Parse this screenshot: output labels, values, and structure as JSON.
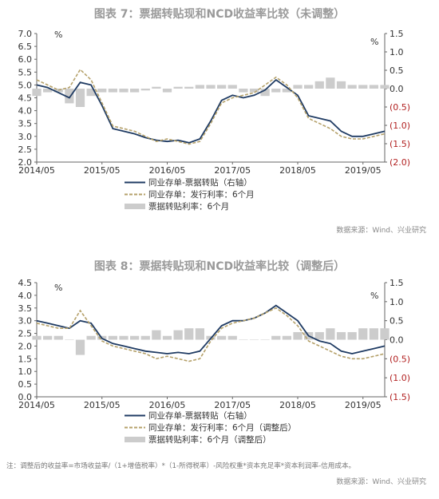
{
  "chart_data": [
    {
      "type": "line",
      "title": "图表 7：票据转贴现和NCD收益率比较（未调整）",
      "unit_left": "%",
      "unit_right": "%",
      "x_ticks": [
        "2014/05",
        "2015/05",
        "2016/05",
        "2017/05",
        "2018/05",
        "2019/05"
      ],
      "x_range": [
        "2014-05",
        "2019-09"
      ],
      "ylim": [
        2.0,
        7.0
      ],
      "y_ticks": [
        "2.0",
        "2.5",
        "3.0",
        "3.5",
        "4.0",
        "4.5",
        "5.0",
        "5.5",
        "6.0",
        "6.5",
        "7.0"
      ],
      "y2lim": [
        -2.0,
        1.5
      ],
      "y2_ticks": [
        "(2.0)",
        "(1.5)",
        "(1.0)",
        "(0.5)",
        "0.0",
        "0.5",
        "1.0",
        "1.5"
      ],
      "legend": [
        "同业存单-票据转贴（右轴）",
        "同业存单：发行利率：6个月",
        "票据转贴利率：6个月"
      ],
      "source": "数据来源：Wind、兴业研究",
      "series": [
        {
          "name": "同业存单：发行利率：6个月",
          "style": "line",
          "color": "#1f3b63",
          "x": [
            "2014-05",
            "2014-07",
            "2014-09",
            "2014-11",
            "2015-01",
            "2015-03",
            "2015-05",
            "2015-07",
            "2015-09",
            "2015-11",
            "2016-01",
            "2016-03",
            "2016-05",
            "2016-07",
            "2016-09",
            "2016-11",
            "2017-01",
            "2017-03",
            "2017-05",
            "2017-07",
            "2017-09",
            "2017-11",
            "2018-01",
            "2018-03",
            "2018-05",
            "2018-07",
            "2018-09",
            "2018-11",
            "2019-01",
            "2019-03",
            "2019-05",
            "2019-07",
            "2019-09"
          ],
          "y": [
            5.0,
            4.9,
            4.7,
            4.5,
            5.1,
            5.0,
            4.2,
            3.3,
            3.2,
            3.1,
            2.95,
            2.85,
            2.8,
            2.85,
            2.75,
            2.9,
            3.6,
            4.4,
            4.6,
            4.5,
            4.6,
            4.8,
            5.2,
            4.9,
            4.6,
            3.8,
            3.7,
            3.6,
            3.2,
            3.0,
            3.0,
            3.1,
            3.2
          ]
        },
        {
          "name": "票据转贴利率：6个月",
          "style": "dashed",
          "color": "#b5a16a",
          "x": [
            "2014-05",
            "2014-07",
            "2014-09",
            "2014-11",
            "2015-01",
            "2015-03",
            "2015-05",
            "2015-07",
            "2015-09",
            "2015-11",
            "2016-01",
            "2016-03",
            "2016-05",
            "2016-07",
            "2016-09",
            "2016-11",
            "2017-01",
            "2017-03",
            "2017-05",
            "2017-07",
            "2017-09",
            "2017-11",
            "2018-01",
            "2018-03",
            "2018-05",
            "2018-07",
            "2018-09",
            "2018-11",
            "2019-01",
            "2019-03",
            "2019-05",
            "2019-07",
            "2019-09"
          ],
          "y": [
            5.2,
            5.0,
            4.8,
            4.9,
            5.6,
            5.2,
            4.3,
            3.4,
            3.3,
            3.2,
            3.0,
            2.8,
            2.9,
            2.8,
            2.7,
            2.8,
            3.5,
            4.3,
            4.5,
            4.6,
            4.7,
            5.0,
            5.3,
            5.0,
            4.5,
            3.7,
            3.5,
            3.3,
            3.0,
            2.9,
            2.9,
            3.0,
            3.1
          ]
        },
        {
          "name": "同业存单-票据转贴（右轴）",
          "style": "bar",
          "axis": "right",
          "color": "#cccccc",
          "x": [
            "2014-05",
            "2014-07",
            "2014-09",
            "2014-11",
            "2015-01",
            "2015-03",
            "2015-05",
            "2015-07",
            "2015-09",
            "2015-11",
            "2016-01",
            "2016-03",
            "2016-05",
            "2016-07",
            "2016-09",
            "2016-11",
            "2017-01",
            "2017-03",
            "2017-05",
            "2017-07",
            "2017-09",
            "2017-11",
            "2018-01",
            "2018-03",
            "2018-05",
            "2018-07",
            "2018-09",
            "2018-11",
            "2019-01",
            "2019-03",
            "2019-05",
            "2019-07",
            "2019-09"
          ],
          "y": [
            -0.2,
            -0.1,
            -0.1,
            -0.4,
            -0.5,
            -0.2,
            -0.1,
            -0.1,
            -0.1,
            -0.1,
            -0.05,
            0.05,
            -0.1,
            0.05,
            0.05,
            0.1,
            0.1,
            0.1,
            0.1,
            -0.1,
            -0.1,
            -0.2,
            -0.1,
            -0.1,
            0.1,
            0.1,
            0.2,
            0.3,
            0.2,
            0.1,
            0.1,
            0.1,
            0.1
          ]
        }
      ]
    },
    {
      "type": "line",
      "title": "图表 8：票据转贴现和NCD收益率比较（调整后）",
      "unit_left": "%",
      "unit_right": "%",
      "x_ticks": [
        "2014/05",
        "2015/05",
        "2016/05",
        "2017/05",
        "2018/05",
        "2019/05"
      ],
      "x_range": [
        "2014-05",
        "2019-09"
      ],
      "ylim": [
        0.0,
        4.5
      ],
      "y_ticks": [
        "0.0",
        "0.5",
        "1.0",
        "1.5",
        "2.0",
        "2.5",
        "3.0",
        "3.5",
        "4.0",
        "4.5"
      ],
      "y2lim": [
        -1.5,
        1.5
      ],
      "y2_ticks": [
        "(1.5)",
        "(1.0)",
        "(0.5)",
        "0.0",
        "0.5",
        "1.0",
        "1.5"
      ],
      "legend": [
        "同业存单-票据转贴（右轴）",
        "同业存单：发行利率：6个月（调整后）",
        "票据转贴利率：6个月（调整后）"
      ],
      "note": "注：调整后的收益率=市场收益率/（1+增值税率）*（1-所得税率）-风险权重*资本充足率*资本利润率-信用成本。",
      "source": "数据来源：Wind、兴业研究",
      "series": [
        {
          "name": "同业存单：发行利率：6个月（调整后）",
          "style": "line",
          "color": "#1f3b63",
          "x": [
            "2014-05",
            "2014-07",
            "2014-09",
            "2014-11",
            "2015-01",
            "2015-03",
            "2015-05",
            "2015-07",
            "2015-09",
            "2015-11",
            "2016-01",
            "2016-03",
            "2016-05",
            "2016-07",
            "2016-09",
            "2016-11",
            "2017-01",
            "2017-03",
            "2017-05",
            "2017-07",
            "2017-09",
            "2017-11",
            "2018-01",
            "2018-03",
            "2018-05",
            "2018-07",
            "2018-09",
            "2018-11",
            "2019-01",
            "2019-03",
            "2019-05",
            "2019-07",
            "2019-09"
          ],
          "y": [
            3.0,
            2.9,
            2.8,
            2.7,
            3.0,
            2.9,
            2.3,
            2.1,
            2.0,
            1.9,
            1.8,
            1.75,
            1.7,
            1.75,
            1.7,
            1.8,
            2.3,
            2.8,
            3.0,
            3.0,
            3.1,
            3.3,
            3.6,
            3.3,
            3.0,
            2.4,
            2.2,
            2.1,
            1.8,
            1.7,
            1.8,
            1.9,
            2.0
          ]
        },
        {
          "name": "票据转贴利率：6个月（调整后）",
          "style": "dashed",
          "color": "#b5a16a",
          "x": [
            "2014-05",
            "2014-07",
            "2014-09",
            "2014-11",
            "2015-01",
            "2015-03",
            "2015-05",
            "2015-07",
            "2015-09",
            "2015-11",
            "2016-01",
            "2016-03",
            "2016-05",
            "2016-07",
            "2016-09",
            "2016-11",
            "2017-01",
            "2017-03",
            "2017-05",
            "2017-07",
            "2017-09",
            "2017-11",
            "2018-01",
            "2018-03",
            "2018-05",
            "2018-07",
            "2018-09",
            "2018-11",
            "2019-01",
            "2019-03",
            "2019-05",
            "2019-07",
            "2019-09"
          ],
          "y": [
            2.9,
            2.8,
            2.7,
            2.7,
            3.4,
            2.8,
            2.2,
            2.0,
            1.9,
            1.8,
            1.7,
            1.5,
            1.6,
            1.5,
            1.4,
            1.5,
            2.2,
            2.7,
            2.9,
            3.0,
            3.1,
            3.3,
            3.5,
            3.2,
            2.8,
            2.2,
            2.0,
            1.8,
            1.6,
            1.5,
            1.5,
            1.6,
            1.7
          ]
        },
        {
          "name": "同业存单-票据转贴（右轴）",
          "style": "bar",
          "axis": "right",
          "color": "#cccccc",
          "x": [
            "2014-05",
            "2014-07",
            "2014-09",
            "2014-11",
            "2015-01",
            "2015-03",
            "2015-05",
            "2015-07",
            "2015-09",
            "2015-11",
            "2016-01",
            "2016-03",
            "2016-05",
            "2016-07",
            "2016-09",
            "2016-11",
            "2017-01",
            "2017-03",
            "2017-05",
            "2017-07",
            "2017-09",
            "2017-11",
            "2018-01",
            "2018-03",
            "2018-05",
            "2018-07",
            "2018-09",
            "2018-11",
            "2019-01",
            "2019-03",
            "2019-05",
            "2019-07",
            "2019-09"
          ],
          "y": [
            0.1,
            0.1,
            0.1,
            0.0,
            -0.4,
            0.1,
            0.1,
            0.1,
            0.1,
            0.1,
            0.1,
            0.25,
            0.1,
            0.25,
            0.3,
            0.3,
            0.1,
            0.1,
            0.1,
            0.0,
            0.0,
            0.0,
            0.1,
            0.1,
            0.2,
            0.2,
            0.2,
            0.3,
            0.2,
            0.2,
            0.3,
            0.3,
            0.3
          ]
        }
      ]
    }
  ]
}
